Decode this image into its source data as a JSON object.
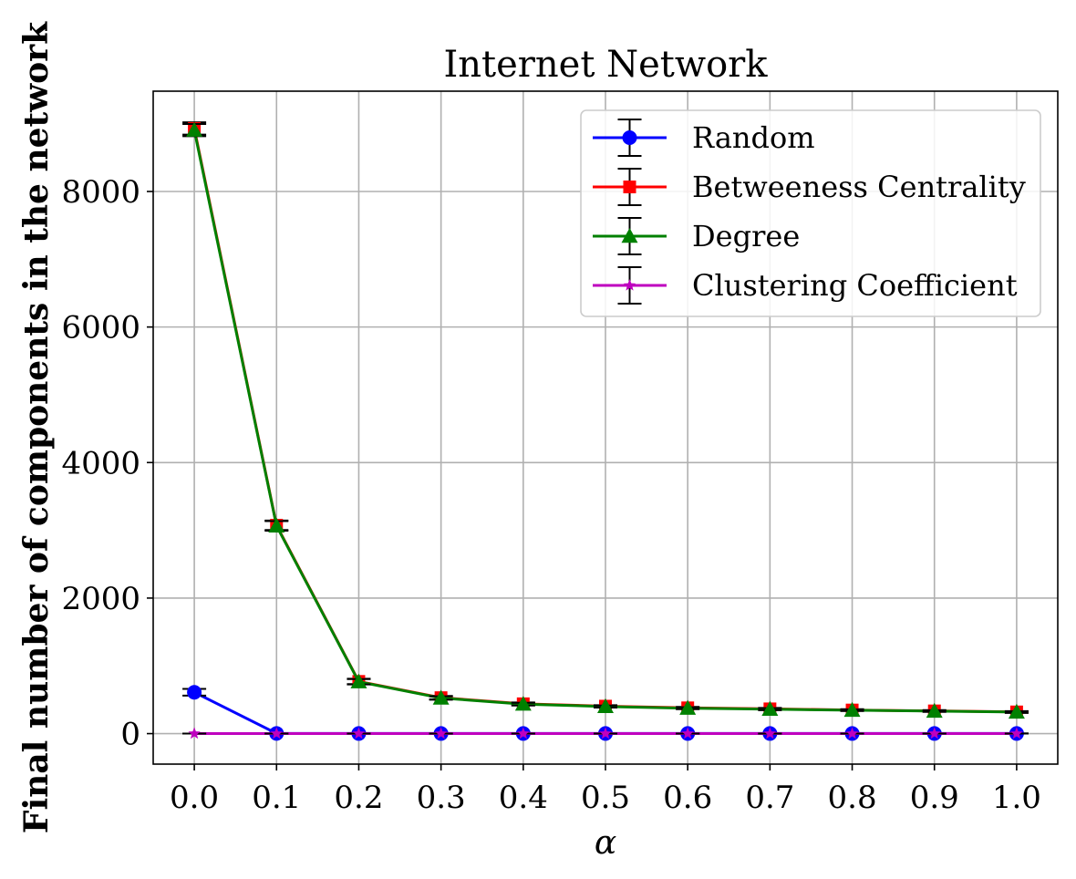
{
  "chart_data": {
    "type": "line",
    "title": "Internet Network",
    "xlabel": "α",
    "ylabel": "Final number of components in the network",
    "x": [
      0.0,
      0.1,
      0.2,
      0.3,
      0.4,
      0.5,
      0.6,
      0.7,
      0.8,
      0.9,
      1.0
    ],
    "x_tick_labels": [
      "0.0",
      "0.1",
      "0.2",
      "0.3",
      "0.4",
      "0.5",
      "0.6",
      "0.7",
      "0.8",
      "0.9",
      "1.0"
    ],
    "y_ticks": [
      0,
      2000,
      4000,
      6000,
      8000
    ],
    "y_tick_labels": [
      "0",
      "2000",
      "4000",
      "6000",
      "8000"
    ],
    "xlim": [
      -0.05,
      1.05
    ],
    "ylim": [
      -450,
      9480
    ],
    "grid": true,
    "legend_position": "top-right",
    "series": [
      {
        "name": "Random",
        "color": "#0000ff",
        "marker": "circle",
        "values": [
          610,
          3,
          2,
          2,
          2,
          2,
          2,
          2,
          2,
          2,
          2
        ],
        "errors": [
          50,
          0,
          0,
          0,
          0,
          0,
          0,
          0,
          0,
          0,
          0
        ]
      },
      {
        "name": "Betweeness Centrality",
        "color": "#ff0000",
        "marker": "square",
        "values": [
          8930,
          3075,
          770,
          530,
          440,
          405,
          380,
          365,
          348,
          335,
          320
        ],
        "errors": [
          90,
          70,
          40,
          25,
          20,
          15,
          15,
          15,
          12,
          12,
          12
        ]
      },
      {
        "name": "Degree",
        "color": "#008000",
        "marker": "triangle",
        "values": [
          8905,
          3065,
          765,
          525,
          435,
          400,
          375,
          360,
          345,
          332,
          318
        ],
        "errors": [
          90,
          70,
          40,
          25,
          20,
          15,
          15,
          15,
          12,
          12,
          12
        ]
      },
      {
        "name": "Clustering Coefficient",
        "color": "#bf00bf",
        "marker": "star",
        "values": [
          0,
          0,
          0,
          0,
          0,
          0,
          0,
          0,
          0,
          0,
          0
        ],
        "errors": [
          0,
          0,
          0,
          0,
          0,
          0,
          0,
          0,
          0,
          0,
          0
        ]
      }
    ]
  }
}
